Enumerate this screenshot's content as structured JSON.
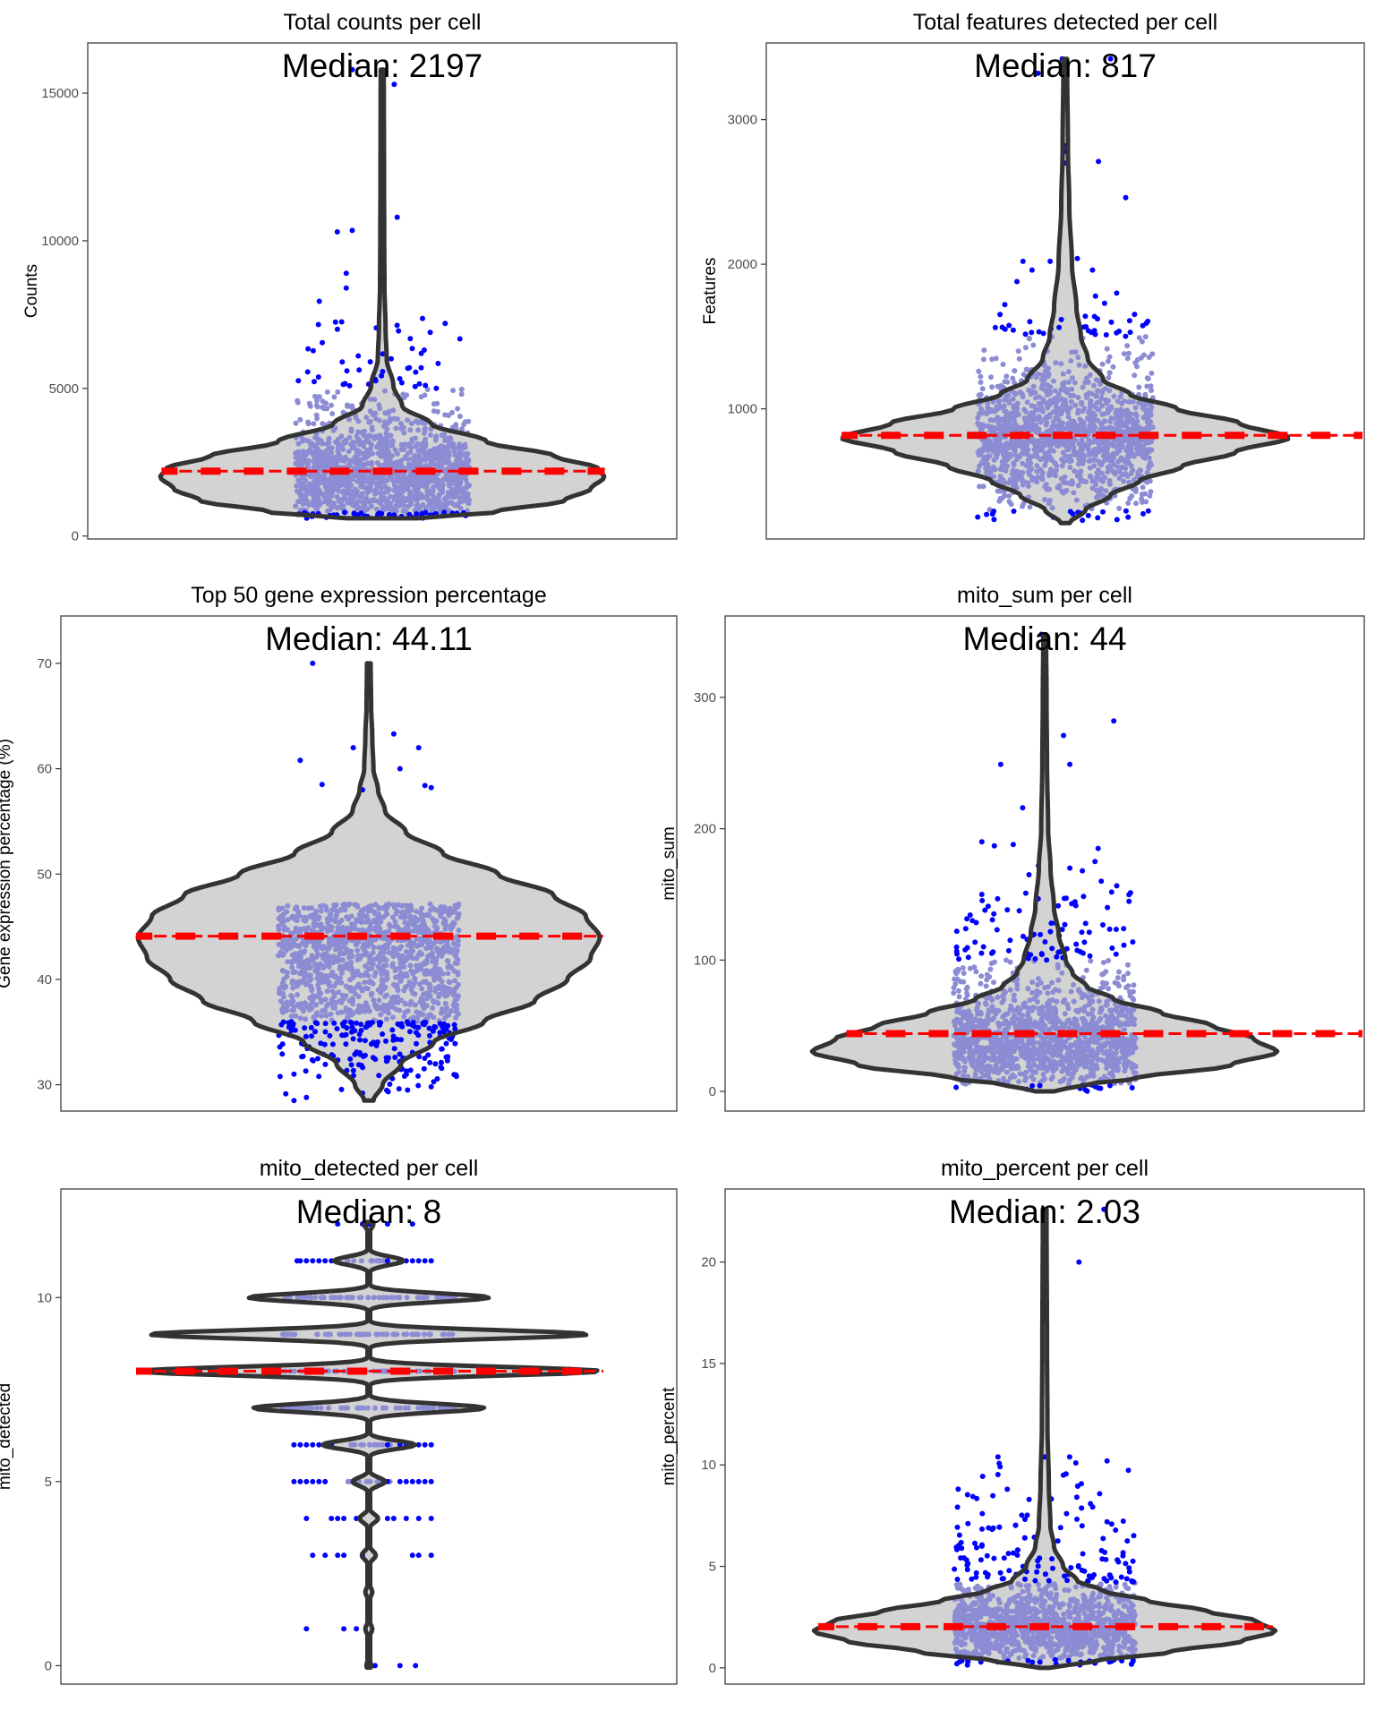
{
  "colors": {
    "violin_fill": "#d3d3d3",
    "violin_outline": "#333333",
    "outlier_points": "#0000ff",
    "inlier_points": "#8c8cd4",
    "median_line": "#ff0000",
    "panel_border": "#4d4d4d",
    "tick_label": "#4d4d4d"
  },
  "chart_data": [
    {
      "type": "violin",
      "title": "Total counts per cell",
      "ylabel": "Counts",
      "median_label": "Median: 2197",
      "median": 2197,
      "ylim": [
        -100,
        16700
      ],
      "yticks": [
        0,
        5000,
        10000,
        15000
      ],
      "ytick_labels": [
        "0",
        "5000",
        "10000",
        "15000"
      ],
      "violin_range": [
        600,
        15800
      ],
      "violin_profile": [
        [
          600,
          0.16
        ],
        [
          800,
          0.5
        ],
        [
          1200,
          0.82
        ],
        [
          1600,
          0.94
        ],
        [
          2000,
          1.0
        ],
        [
          2300,
          0.97
        ],
        [
          2700,
          0.78
        ],
        [
          3200,
          0.47
        ],
        [
          3800,
          0.22
        ],
        [
          4400,
          0.09
        ],
        [
          5100,
          0.05
        ],
        [
          6000,
          0.02
        ],
        [
          7000,
          0.015
        ],
        [
          8500,
          0.01
        ],
        [
          10000,
          0.009
        ],
        [
          12000,
          0.008
        ],
        [
          15800,
          0.007
        ]
      ],
      "inlier_range": [
        800,
        5000
      ],
      "highlight_points": [
        [
          -0.1,
          15800
        ],
        [
          0.04,
          15300
        ],
        [
          -0.15,
          10300
        ],
        [
          -0.1,
          10350
        ],
        [
          0.05,
          10800
        ],
        [
          -0.12,
          8900
        ],
        [
          -0.12,
          8400
        ],
        [
          -0.21,
          7950
        ],
        [
          0.21,
          7200
        ],
        [
          -0.02,
          7050
        ],
        [
          0.16,
          6900
        ],
        [
          -0.2,
          6550
        ],
        [
          0.1,
          6350
        ],
        [
          0.14,
          6300
        ],
        [
          -0.08,
          6100
        ],
        [
          0.03,
          6000
        ],
        [
          -0.04,
          5900
        ],
        [
          0.13,
          5700
        ]
      ]
    },
    {
      "type": "violin",
      "title": "Total features detected per cell",
      "ylabel": "Features",
      "median_label": "Median: 817",
      "median": 817,
      "ylim": [
        100,
        3530
      ],
      "yticks": [
        1000,
        2000,
        3000
      ],
      "ytick_labels": [
        "1000",
        "2000",
        "3000"
      ],
      "violin_range": [
        210,
        3420
      ],
      "violin_profile": [
        [
          210,
          0.02
        ],
        [
          300,
          0.09
        ],
        [
          400,
          0.2
        ],
        [
          500,
          0.33
        ],
        [
          600,
          0.52
        ],
        [
          700,
          0.76
        ],
        [
          800,
          1.0
        ],
        [
          900,
          0.78
        ],
        [
          1000,
          0.5
        ],
        [
          1100,
          0.29
        ],
        [
          1200,
          0.17
        ],
        [
          1350,
          0.1
        ],
        [
          1500,
          0.07
        ],
        [
          1700,
          0.05
        ],
        [
          2000,
          0.03
        ],
        [
          2400,
          0.018
        ],
        [
          2800,
          0.012
        ],
        [
          3420,
          0.008
        ]
      ],
      "inlier_range": [
        300,
        1500
      ],
      "highlight_points": [
        [
          -0.01,
          3420
        ],
        [
          0.15,
          3420
        ],
        [
          -0.09,
          3320
        ],
        [
          0.0,
          2820
        ],
        [
          0.0,
          2780
        ],
        [
          0.0,
          2700
        ],
        [
          0.11,
          2710
        ],
        [
          0.2,
          2460
        ],
        [
          -0.05,
          2020
        ],
        [
          -0.14,
          2020
        ],
        [
          0.04,
          2040
        ],
        [
          -0.11,
          1960
        ],
        [
          0.09,
          1960
        ],
        [
          -0.16,
          1880
        ],
        [
          0.1,
          1780
        ],
        [
          0.17,
          1800
        ],
        [
          0.13,
          1730
        ],
        [
          -0.2,
          1720
        ]
      ]
    },
    {
      "type": "violin",
      "title": "Top 50 gene expression percentage",
      "ylabel": "Gene expression percentage (%)",
      "median_label": "Median: 44.11",
      "median": 44.11,
      "ylim": [
        27.5,
        74.5
      ],
      "yticks": [
        30,
        40,
        50,
        60,
        70
      ],
      "ytick_labels": [
        "30",
        "40",
        "50",
        "60",
        "70"
      ],
      "violin_range": [
        28.5,
        70
      ],
      "violin_profile": [
        [
          28.5,
          0.02
        ],
        [
          30,
          0.06
        ],
        [
          32,
          0.14
        ],
        [
          34,
          0.28
        ],
        [
          36,
          0.5
        ],
        [
          38,
          0.72
        ],
        [
          40,
          0.86
        ],
        [
          42,
          0.96
        ],
        [
          44,
          1.0
        ],
        [
          46,
          0.94
        ],
        [
          48,
          0.8
        ],
        [
          50,
          0.56
        ],
        [
          52,
          0.32
        ],
        [
          54,
          0.16
        ],
        [
          56,
          0.07
        ],
        [
          58,
          0.04
        ],
        [
          60,
          0.02
        ],
        [
          63,
          0.015
        ],
        [
          66,
          0.01
        ],
        [
          70,
          0.008
        ]
      ],
      "inlier_range": [
        36,
        50
      ],
      "highlight_points": [
        [
          -0.18,
          70
        ],
        [
          -0.05,
          62
        ],
        [
          0.08,
          63.3
        ],
        [
          0.16,
          62
        ],
        [
          -0.22,
          60.8
        ],
        [
          0.1,
          60
        ],
        [
          -0.15,
          58.5
        ],
        [
          0.18,
          58.4
        ],
        [
          0.2,
          58.2
        ],
        [
          -0.02,
          58
        ],
        [
          -0.24,
          28.5
        ],
        [
          -0.2,
          28.8
        ],
        [
          -0.02,
          29.2
        ],
        [
          0.2,
          29.8
        ],
        [
          -0.24,
          31
        ],
        [
          0.12,
          31.3
        ]
      ]
    },
    {
      "type": "violin",
      "title": "mito_sum per cell",
      "ylabel": "mito_sum",
      "median_label": "Median: 44",
      "median": 44,
      "ylim": [
        -15,
        362
      ],
      "yticks": [
        0,
        100,
        200,
        300
      ],
      "ytick_labels": [
        "0",
        "100",
        "200",
        "300"
      ],
      "violin_range": [
        0,
        348
      ],
      "violin_profile": [
        [
          0,
          0.04
        ],
        [
          5,
          0.17
        ],
        [
          10,
          0.4
        ],
        [
          20,
          0.8
        ],
        [
          30,
          1.0
        ],
        [
          40,
          0.9
        ],
        [
          50,
          0.72
        ],
        [
          60,
          0.5
        ],
        [
          70,
          0.3
        ],
        [
          80,
          0.18
        ],
        [
          90,
          0.12
        ],
        [
          100,
          0.09
        ],
        [
          120,
          0.06
        ],
        [
          140,
          0.04
        ],
        [
          170,
          0.025
        ],
        [
          200,
          0.015
        ],
        [
          250,
          0.01
        ],
        [
          300,
          0.008
        ],
        [
          348,
          0.006
        ]
      ],
      "inlier_range": [
        5,
        100
      ],
      "highlight_points": [
        [
          -0.01,
          348
        ],
        [
          0.0,
          283
        ],
        [
          0.22,
          282
        ],
        [
          0.06,
          271
        ],
        [
          0.08,
          249
        ],
        [
          -0.14,
          249
        ],
        [
          -0.07,
          216
        ],
        [
          -0.2,
          190
        ],
        [
          -0.16,
          187
        ],
        [
          -0.1,
          188
        ],
        [
          0.17,
          185
        ],
        [
          0.16,
          175
        ],
        [
          -0.02,
          172
        ],
        [
          0.08,
          170
        ],
        [
          0.12,
          168
        ],
        [
          -0.05,
          165
        ],
        [
          0.18,
          160
        ],
        [
          -0.2,
          150
        ]
      ]
    },
    {
      "type": "violin",
      "title": "mito_detected per cell",
      "ylabel": "mito_detected",
      "median_label": "Median: 8",
      "median": 8,
      "ylim": [
        -0.5,
        12.95
      ],
      "yticks": [
        0,
        5,
        10
      ],
      "ytick_labels": [
        "0",
        "5",
        "10"
      ],
      "discrete_levels": [
        [
          0,
          0.01
        ],
        [
          1,
          0.015
        ],
        [
          2,
          0.015
        ],
        [
          3,
          0.03
        ],
        [
          4,
          0.04
        ],
        [
          5,
          0.07
        ],
        [
          6,
          0.2
        ],
        [
          7,
          0.5
        ],
        [
          8,
          1.0
        ],
        [
          9,
          0.95
        ],
        [
          10,
          0.52
        ],
        [
          11,
          0.15
        ],
        [
          12,
          0.02
        ]
      ],
      "discrete_jitter": [
        [
          5,
          [
            -0.24,
            -0.22,
            -0.2,
            -0.18,
            -0.16,
            -0.14,
            0.06,
            0.1,
            0.12,
            0.14,
            0.16,
            0.18,
            0.2
          ]
        ],
        [
          6,
          [
            -0.24,
            -0.22,
            -0.2,
            -0.18,
            -0.16,
            -0.12,
            0.06,
            0.1,
            0.12,
            0.14,
            0.16,
            0.18,
            0.2
          ]
        ],
        [
          4,
          [
            -0.2,
            -0.12,
            -0.1,
            -0.08,
            -0.04,
            0.06,
            0.08,
            0.12,
            0.16,
            0.2
          ]
        ],
        [
          3,
          [
            -0.18,
            -0.14,
            -0.1,
            -0.08,
            -0.02,
            0.14,
            0.16,
            0.2
          ]
        ],
        [
          11,
          [
            -0.23,
            -0.22,
            -0.2,
            -0.18,
            -0.16,
            -0.14,
            -0.12,
            0.06,
            0.1,
            0.12,
            0.14,
            0.16,
            0.18,
            0.2
          ]
        ],
        [
          12,
          [
            -0.1,
            -0.02,
            0.0,
            0.06,
            0.14
          ]
        ],
        [
          1,
          [
            -0.2,
            -0.08,
            -0.04
          ]
        ],
        [
          0,
          [
            0.02,
            0.1,
            0.15
          ]
        ]
      ]
    },
    {
      "type": "violin",
      "title": "mito_percent per cell",
      "ylabel": "mito_percent",
      "median_label": "Median: 2.03",
      "median": 2.03,
      "ylim": [
        -0.8,
        23.6
      ],
      "yticks": [
        0,
        5,
        10,
        15,
        20
      ],
      "ytick_labels": [
        "0",
        "5",
        "10",
        "15",
        "20"
      ],
      "violin_range": [
        0,
        22.6
      ],
      "violin_profile": [
        [
          0,
          0.02
        ],
        [
          0.3,
          0.2
        ],
        [
          0.8,
          0.55
        ],
        [
          1.3,
          0.85
        ],
        [
          1.8,
          1.0
        ],
        [
          2.3,
          0.92
        ],
        [
          2.8,
          0.7
        ],
        [
          3.3,
          0.45
        ],
        [
          3.8,
          0.25
        ],
        [
          4.3,
          0.14
        ],
        [
          5,
          0.08
        ],
        [
          6,
          0.04
        ],
        [
          7,
          0.025
        ],
        [
          9,
          0.018
        ],
        [
          12,
          0.012
        ],
        [
          16,
          0.01
        ],
        [
          22.6,
          0.008
        ]
      ],
      "inlier_range": [
        0.4,
        4.2
      ],
      "highlight_points": [
        [
          0.19,
          22.6
        ],
        [
          0.11,
          20
        ],
        [
          0.0,
          20.1
        ],
        [
          -0.15,
          10.4
        ],
        [
          0.0,
          10.4
        ],
        [
          0.08,
          10.4
        ],
        [
          0.1,
          10.1
        ],
        [
          0.2,
          10.2
        ],
        [
          0.06,
          9.5
        ],
        [
          -0.12,
          8.8
        ],
        [
          -0.05,
          8.3
        ],
        [
          0.07,
          7.6
        ],
        [
          -0.2,
          7.6
        ],
        [
          0.2,
          7.2
        ],
        [
          0.12,
          7.0
        ],
        [
          -0.18,
          6.9
        ]
      ]
    }
  ]
}
